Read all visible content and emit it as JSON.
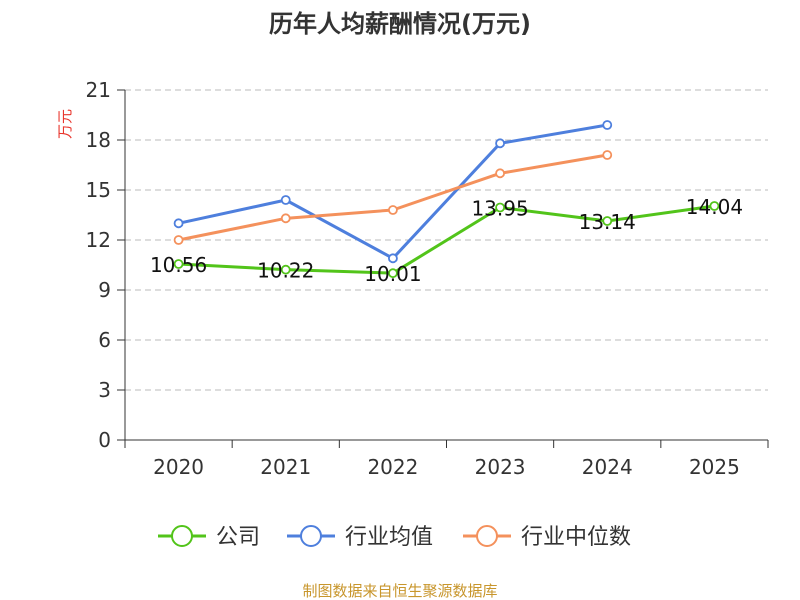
{
  "chart_data": {
    "type": "line",
    "title": "历年人均薪酬情况(万元)",
    "xlabel": "",
    "ylabel": "万元",
    "categories": [
      "2020",
      "2021",
      "2022",
      "2023",
      "2024",
      "2025"
    ],
    "ylim": [
      0,
      21
    ],
    "yticks": [
      0,
      3,
      6,
      9,
      12,
      15,
      18,
      21
    ],
    "grid": true,
    "legend_position": "bottom",
    "series": [
      {
        "name": "公司",
        "color": "#52c41a",
        "values": [
          10.56,
          10.22,
          10.01,
          13.95,
          13.14,
          14.04
        ],
        "labels": [
          "10.56",
          "10.22",
          "10.01",
          "13.95",
          "13.14",
          "14.04"
        ]
      },
      {
        "name": "行业均值",
        "color": "#4e7fdd",
        "values": [
          13.0,
          14.4,
          10.9,
          17.8,
          18.9,
          null
        ]
      },
      {
        "name": "行业中位数",
        "color": "#f4915c",
        "values": [
          12.0,
          13.3,
          13.8,
          16.0,
          17.1,
          null
        ]
      }
    ],
    "source": "制图数据来自恒生聚源数据库"
  }
}
